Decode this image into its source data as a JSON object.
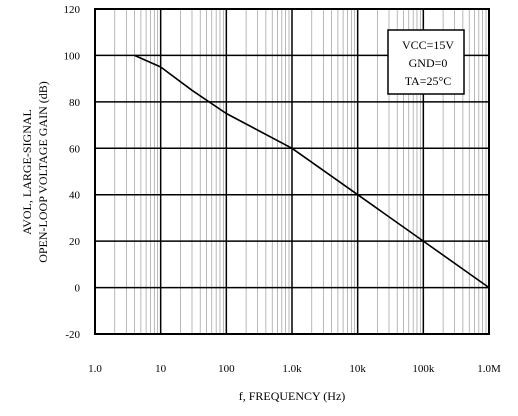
{
  "chart_data": {
    "type": "line",
    "title": "",
    "xlabel": "f, FREQUENCY (Hz)",
    "ylabel_line1": "AVOL, LARGE-SIGNAL",
    "ylabel_line2": "OPEN-LOOP VOLTAGE GAIN (dB)",
    "x_scale": "log",
    "xlim": [
      1,
      1000000
    ],
    "ylim": [
      -20,
      120
    ],
    "x_tick_values": [
      1,
      10,
      100,
      1000,
      10000,
      100000,
      1000000
    ],
    "x_tick_labels": [
      "1.0",
      "10",
      "100",
      "1.0k",
      "10k",
      "100k",
      "1.0M"
    ],
    "y_tick_values": [
      120,
      100,
      80,
      60,
      40,
      20,
      0,
      -20
    ],
    "y_tick_labels": [
      "120",
      "100",
      "80",
      "60",
      "40",
      "20",
      "0",
      "-20"
    ],
    "grid": true,
    "legend_position": "top-right",
    "legend_lines": [
      "VCC=15V",
      "GND=0",
      "TA=25°C"
    ],
    "series": [
      {
        "x": [
          4,
          10,
          30,
          100,
          1000,
          10000,
          100000,
          1000000
        ],
        "y": [
          100,
          95,
          85,
          75,
          60,
          40,
          20,
          0
        ]
      }
    ]
  }
}
